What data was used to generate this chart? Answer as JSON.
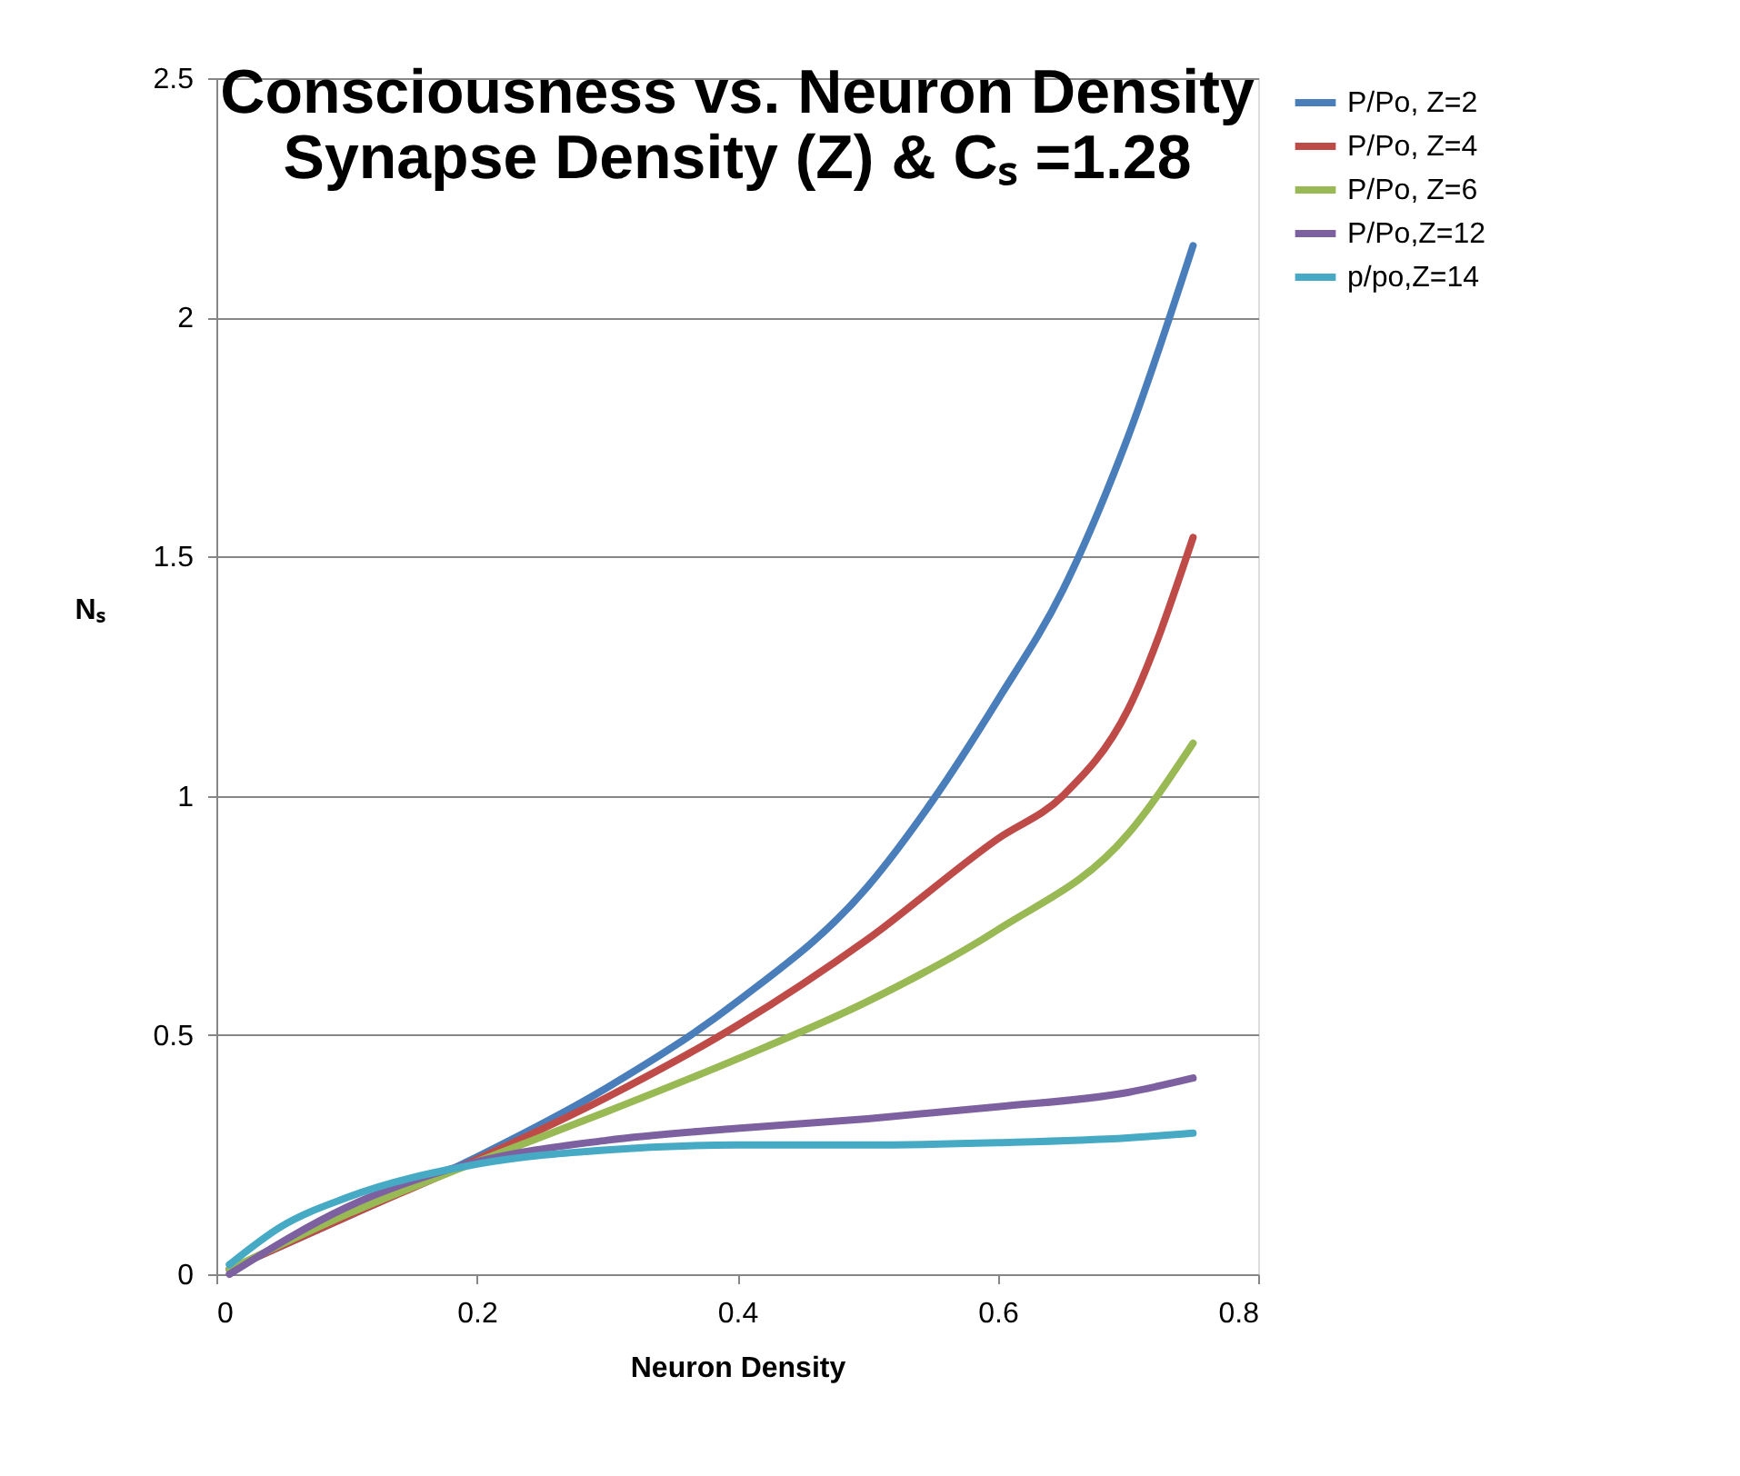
{
  "chart_data": {
    "type": "line",
    "title": [
      "Consciousness vs. Neuron Density",
      "Synapse Density (Z) & Cₛ =1.28"
    ],
    "xlabel": "Neuron Density",
    "ylabel": "Nₛ",
    "xlim": [
      0,
      0.8
    ],
    "xticks": [
      0,
      0.2,
      0.4,
      0.6,
      0.8
    ],
    "ylim": [
      0,
      2.5
    ],
    "yticks": [
      0,
      0.5,
      1,
      1.5,
      2,
      2.5
    ],
    "grid": "y",
    "legend": "right",
    "marker": "none",
    "line_style": "solid",
    "series": [
      {
        "name": "P/Po, Z=2",
        "color": "#4a7ebb",
        "x": [
          0.01,
          0.1,
          0.2,
          0.3,
          0.4,
          0.5,
          0.55,
          0.6,
          0.65,
          0.7,
          0.75
        ],
        "values": [
          0.01,
          0.12,
          0.245,
          0.39,
          0.57,
          0.81,
          0.99,
          1.2,
          1.43,
          1.75,
          2.15
        ]
      },
      {
        "name": "P/Po, Z=4",
        "color": "#be4b48",
        "x": [
          0.01,
          0.1,
          0.2,
          0.3,
          0.4,
          0.5,
          0.6,
          0.65,
          0.7,
          0.75
        ],
        "values": [
          0.01,
          0.12,
          0.24,
          0.37,
          0.52,
          0.7,
          0.91,
          1.0,
          1.18,
          1.54
        ]
      },
      {
        "name": "P/Po, Z=6",
        "color": "#98b954",
        "x": [
          0.01,
          0.1,
          0.2,
          0.3,
          0.4,
          0.5,
          0.6,
          0.7,
          0.75
        ],
        "values": [
          0.01,
          0.125,
          0.235,
          0.34,
          0.45,
          0.57,
          0.72,
          0.92,
          1.11
        ]
      },
      {
        "name": "P/Po,Z=12",
        "color": "#7d60a0",
        "x": [
          0.01,
          0.1,
          0.2,
          0.3,
          0.4,
          0.5,
          0.6,
          0.7,
          0.75
        ],
        "values": [
          0.0,
          0.14,
          0.235,
          0.28,
          0.305,
          0.325,
          0.35,
          0.38,
          0.41
        ]
      },
      {
        "name": "p/po,Z=14",
        "color": "#46aac5",
        "x": [
          0.01,
          0.05,
          0.1,
          0.2,
          0.3,
          0.4,
          0.5,
          0.6,
          0.7,
          0.75
        ],
        "values": [
          0.02,
          0.1,
          0.16,
          0.23,
          0.26,
          0.27,
          0.27,
          0.275,
          0.285,
          0.295
        ]
      }
    ]
  }
}
